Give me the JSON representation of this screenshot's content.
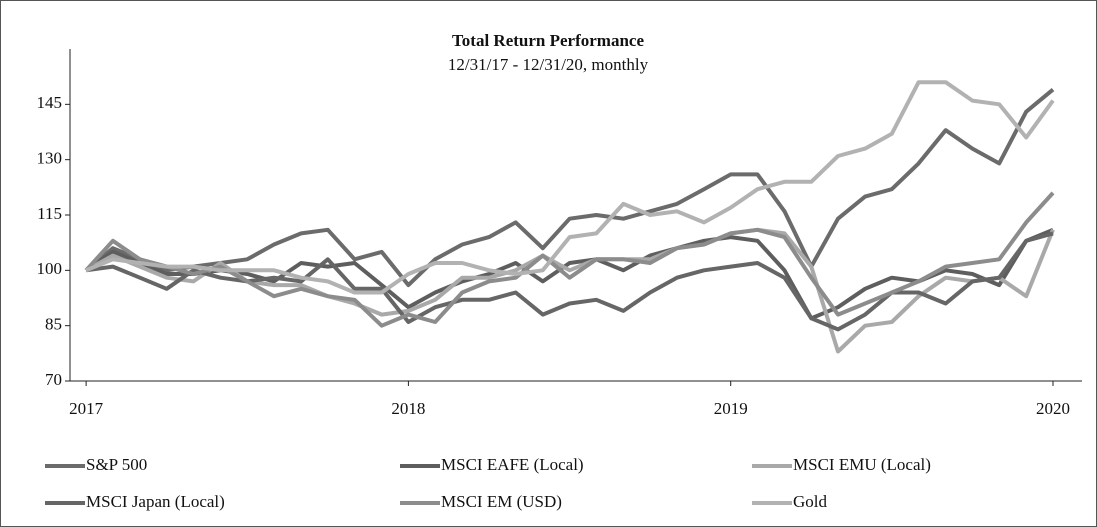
{
  "chart_data": {
    "type": "line",
    "title": "Total Return Performance",
    "subtitle": "12/31/17 - 12/31/20, monthly",
    "x": [
      2017,
      2017.083,
      2017.167,
      2017.25,
      2017.333,
      2017.417,
      2017.5,
      2017.583,
      2017.667,
      2017.75,
      2017.833,
      2017.917,
      2018,
      2018.083,
      2018.167,
      2018.25,
      2018.333,
      2018.417,
      2018.5,
      2018.583,
      2018.667,
      2018.75,
      2018.833,
      2018.917,
      2019,
      2019.083,
      2019.167,
      2019.25,
      2019.333,
      2019.417,
      2019.5,
      2019.583,
      2019.667,
      2019.75,
      2019.833,
      2019.917,
      2020
    ],
    "xlim": [
      2016.95,
      2020.09
    ],
    "xticks": [
      2017,
      2018,
      2019,
      2020
    ],
    "ylim": [
      70,
      160
    ],
    "yticks": [
      70,
      85,
      100,
      115,
      130,
      145
    ],
    "series": [
      {
        "name": "S&P 500",
        "color": "#6b6b6b",
        "values": [
          100,
          106,
          103,
          100,
          101,
          102,
          103,
          107,
          110,
          111,
          103,
          105,
          96,
          103,
          107,
          109,
          113,
          106,
          114,
          115,
          114,
          116,
          118,
          122,
          126,
          126,
          116,
          101,
          114,
          120,
          122,
          129,
          138,
          133,
          129,
          143,
          149
        ]
      },
      {
        "name": "MSCI EAFE (Local)",
        "color": "#5e5e5e",
        "values": [
          100,
          105,
          102,
          99,
          99,
          100,
          99,
          97,
          102,
          101,
          102,
          96,
          90,
          94,
          97,
          99,
          102,
          97,
          102,
          103,
          100,
          104,
          106,
          108,
          109,
          108,
          100,
          87,
          90,
          95,
          98,
          97,
          100,
          99,
          96,
          108,
          111
        ]
      },
      {
        "name": "MSCI EMU (Local)",
        "color": "#a9a9a9",
        "values": [
          100,
          104,
          101,
          98,
          97,
          102,
          97,
          96,
          96,
          93,
          91,
          88,
          89,
          92,
          98,
          98,
          100,
          104,
          100,
          103,
          103,
          103,
          106,
          107,
          110,
          111,
          110,
          101,
          78,
          85,
          86,
          93,
          98,
          97,
          98,
          93,
          111
        ]
      },
      {
        "name": "MSCI Japan (Local)",
        "color": "#666666",
        "values": [
          100,
          101,
          98,
          95,
          100,
          98,
          97,
          98,
          97,
          103,
          95,
          95,
          86,
          90,
          92,
          92,
          94,
          88,
          91,
          92,
          89,
          94,
          98,
          100,
          101,
          102,
          98,
          87,
          84,
          88,
          94,
          94,
          91,
          97,
          98,
          108,
          110
        ]
      },
      {
        "name": "MSCI EM (USD)",
        "color": "#8c8c8c",
        "values": [
          100,
          108,
          103,
          101,
          99,
          101,
          97,
          93,
          95,
          93,
          92,
          85,
          88,
          86,
          94,
          97,
          98,
          104,
          98,
          103,
          103,
          102,
          106,
          107,
          110,
          111,
          109,
          98,
          88,
          91,
          94,
          97,
          101,
          102,
          103,
          113,
          121
        ]
      },
      {
        "name": "Gold",
        "color": "#b2b2b2",
        "values": [
          100,
          103,
          102,
          101,
          101,
          100,
          100,
          100,
          98,
          97,
          94,
          94,
          99,
          102,
          102,
          100,
          99,
          100,
          109,
          110,
          118,
          115,
          116,
          113,
          117,
          122,
          124,
          124,
          131,
          133,
          137,
          151,
          151,
          146,
          145,
          136,
          146
        ]
      }
    ]
  }
}
